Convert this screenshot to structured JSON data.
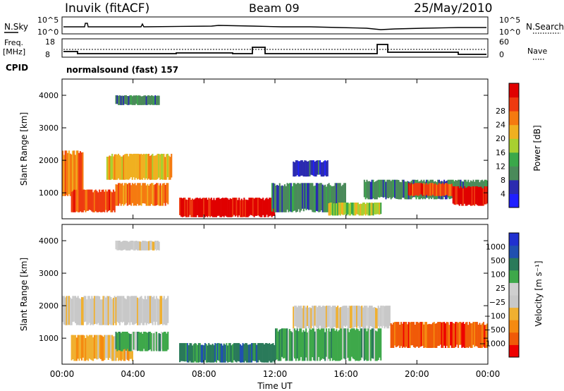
{
  "header": {
    "station": "Inuvik (fitACF)",
    "beam": "Beam 09",
    "date": "25/May/2010"
  },
  "summary": {
    "nsky_label": "N.Sky",
    "nsearch_label": "N.Search",
    "nsky_ticks": [
      "10^5",
      "10^0"
    ],
    "nsearch_ticks": [
      "10^5",
      "10^0"
    ],
    "freq_label_1": "Freq.",
    "freq_label_2": "[MHz]",
    "freq_ticks": [
      "18",
      "8"
    ],
    "nave_label": "Nave",
    "nave_ticks": [
      "60",
      "0"
    ],
    "cpid_label": "CPID",
    "cpid_text": "normalsound (fast) 157"
  },
  "colors": {
    "power_scale": [
      "#1f1fff",
      "#2b2bb0",
      "#4a8a5a",
      "#3aa84a",
      "#a8d030",
      "#f0b020",
      "#f57a10",
      "#ee3a10",
      "#e00000"
    ],
    "velocity_scale": [
      "#ee0000",
      "#f05a08",
      "#f58a10",
      "#f0b030",
      "#c8c8c8",
      "#cfcfcf",
      "#3ea84a",
      "#2a7a5a",
      "#2050b0",
      "#2030d0"
    ]
  },
  "chart_data": [
    {
      "type": "heatmap",
      "name": "power-panel",
      "ylabel": "Slant Range [km]",
      "yticks": [
        "1000",
        "2000",
        "3000",
        "4000"
      ],
      "ylim": [
        200,
        4500
      ],
      "xlim": [
        0,
        24
      ],
      "colorbar_label": "Power [dB]",
      "colorbar_ticks": [
        "4",
        "8",
        "12",
        "16",
        "20",
        "24",
        "28"
      ],
      "regions": [
        {
          "t0": 0.0,
          "t1": 1.2,
          "r0": 900,
          "r1": 2300,
          "level": 6
        },
        {
          "t0": 0.5,
          "t1": 3.0,
          "r0": 400,
          "r1": 1100,
          "level": 7
        },
        {
          "t0": 2.5,
          "t1": 6.2,
          "r0": 1400,
          "r1": 2200,
          "level": 5
        },
        {
          "t0": 3.0,
          "t1": 6.0,
          "r0": 600,
          "r1": 1300,
          "level": 6
        },
        {
          "t0": 6.6,
          "t1": 12.0,
          "r0": 250,
          "r1": 850,
          "level": 8
        },
        {
          "t0": 11.8,
          "t1": 16.0,
          "r0": 400,
          "r1": 1300,
          "level": 2
        },
        {
          "t0": 13.0,
          "t1": 15.0,
          "r0": 1500,
          "r1": 2000,
          "level": 1
        },
        {
          "t0": 15.0,
          "t1": 18.0,
          "r0": 300,
          "r1": 700,
          "level": 4
        },
        {
          "t0": 17.0,
          "t1": 24.0,
          "r0": 800,
          "r1": 1400,
          "level": 2
        },
        {
          "t0": 19.5,
          "t1": 22.0,
          "r0": 900,
          "r1": 1300,
          "level": 7
        },
        {
          "t0": 22.0,
          "t1": 24.0,
          "r0": 600,
          "r1": 1200,
          "level": 8
        },
        {
          "t0": 3.0,
          "t1": 5.5,
          "r0": 3700,
          "r1": 4000,
          "level": 2
        }
      ]
    },
    {
      "type": "heatmap",
      "name": "velocity-panel",
      "xlabel": "Time UT",
      "ylabel": "Slant Range [km]",
      "xticks": [
        "00:00",
        "04:00",
        "08:00",
        "12:00",
        "16:00",
        "20:00",
        "00:00"
      ],
      "yticks": [
        "1000",
        "2000",
        "3000",
        "4000"
      ],
      "ylim": [
        200,
        4500
      ],
      "xlim": [
        0,
        24
      ],
      "colorbar_label": "Velocity [m s⁻¹]",
      "colorbar_ticks": [
        "1000",
        "500",
        "100",
        "25",
        "−25",
        "−100",
        "−500",
        "−1000"
      ],
      "regions": [
        {
          "t0": 0.0,
          "t1": 6.0,
          "r0": 1400,
          "r1": 2300,
          "level": 4
        },
        {
          "t0": 0.5,
          "t1": 4.0,
          "r0": 300,
          "r1": 1100,
          "level": 3
        },
        {
          "t0": 3.0,
          "t1": 6.0,
          "r0": 600,
          "r1": 1200,
          "level": 6
        },
        {
          "t0": 6.6,
          "t1": 12.0,
          "r0": 250,
          "r1": 850,
          "level": 7
        },
        {
          "t0": 12.0,
          "t1": 18.0,
          "r0": 300,
          "r1": 1300,
          "level": 6
        },
        {
          "t0": 13.0,
          "t1": 18.5,
          "r0": 1300,
          "r1": 2000,
          "level": 4
        },
        {
          "t0": 18.5,
          "t1": 24.0,
          "r0": 700,
          "r1": 1500,
          "level": 1
        },
        {
          "t0": 3.0,
          "t1": 5.5,
          "r0": 3700,
          "r1": 4000,
          "level": 4
        }
      ]
    }
  ]
}
